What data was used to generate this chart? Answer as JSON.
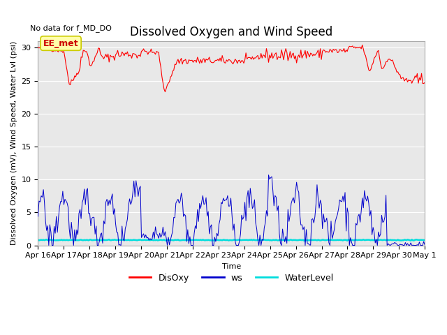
{
  "title": "Dissolved Oxygen and Wind Speed",
  "top_left_text": "No data for f_MD_DO",
  "annotation_text": "EE_met",
  "xlabel": "Time",
  "ylabel": "Dissolved Oxygen (mV), Wind Speed, Water Lvl (psi)",
  "ylim": [
    0,
    31
  ],
  "yticks": [
    0,
    5,
    10,
    15,
    20,
    25,
    30
  ],
  "x_tick_labels": [
    "Apr 16",
    "Apr 17",
    "Apr 18",
    "Apr 19",
    "Apr 20",
    "Apr 21",
    "Apr 22",
    "Apr 23",
    "Apr 24",
    "Apr 25",
    "Apr 26",
    "Apr 27",
    "Apr 28",
    "Apr 29",
    "Apr 30",
    "May 1"
  ],
  "disoxy_color": "#ff0000",
  "ws_color": "#0000cc",
  "waterlevel_color": "#00dddd",
  "background_color": "#e8e8e8",
  "title_fontsize": 12,
  "label_fontsize": 8,
  "tick_fontsize": 8,
  "legend_labels": [
    "DisOxy",
    "ws",
    "WaterLevel"
  ],
  "fig_width": 6.4,
  "fig_height": 4.8,
  "dpi": 100
}
